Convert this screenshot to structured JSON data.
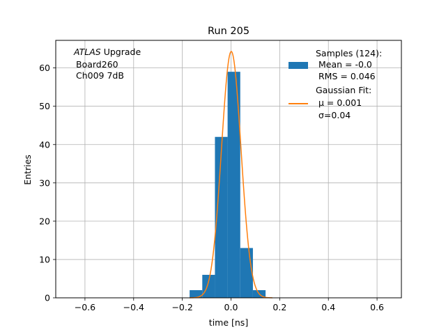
{
  "chart_data": {
    "type": "bar",
    "title": "Run 205",
    "xlabel": "time [ns]",
    "ylabel": "Entries",
    "xlim": [
      -0.72,
      0.7
    ],
    "ylim": [
      0,
      67.2
    ],
    "xticks": [
      -0.6,
      -0.4,
      -0.2,
      0.0,
      0.2,
      0.4,
      0.6
    ],
    "xtick_labels": [
      "−0.6",
      "−0.4",
      "−0.2",
      "0.0",
      "0.2",
      "0.4",
      "0.6"
    ],
    "yticks": [
      0,
      10,
      20,
      30,
      40,
      50,
      60
    ],
    "ytick_labels": [
      "0",
      "10",
      "20",
      "30",
      "40",
      "50",
      "60"
    ],
    "grid": true,
    "annotation": {
      "line1_italic": "ATLAS",
      "line1_rest": " Upgrade",
      "line2": "Board260",
      "line3": "Ch009 7dB"
    },
    "legend": {
      "position": "top-right",
      "entries": [
        {
          "lines": [
            "Samples (124):",
            "Mean = -0.0",
            "RMS = 0.046"
          ],
          "marker": "patch"
        },
        {
          "lines": [
            "Gaussian Fit:",
            "μ = 0.001",
            "σ=0.04"
          ],
          "marker": "line"
        }
      ]
    },
    "series": [
      {
        "kind": "histogram",
        "color": "#1f77b4",
        "bins": [
          {
            "x0": -0.17,
            "x1": -0.118,
            "count": 2
          },
          {
            "x0": -0.118,
            "x1": -0.066,
            "count": 6
          },
          {
            "x0": -0.066,
            "x1": -0.014,
            "count": 42
          },
          {
            "x0": -0.014,
            "x1": 0.038,
            "count": 59
          },
          {
            "x0": 0.038,
            "x1": 0.09,
            "count": 13
          },
          {
            "x0": 0.09,
            "x1": 0.142,
            "count": 2
          }
        ]
      },
      {
        "kind": "gaussian",
        "color": "#ff7f0e",
        "mu": 0.001,
        "sigma": 0.04,
        "amplitude": 64.3,
        "range": [
          -0.17,
          0.17
        ]
      }
    ]
  }
}
